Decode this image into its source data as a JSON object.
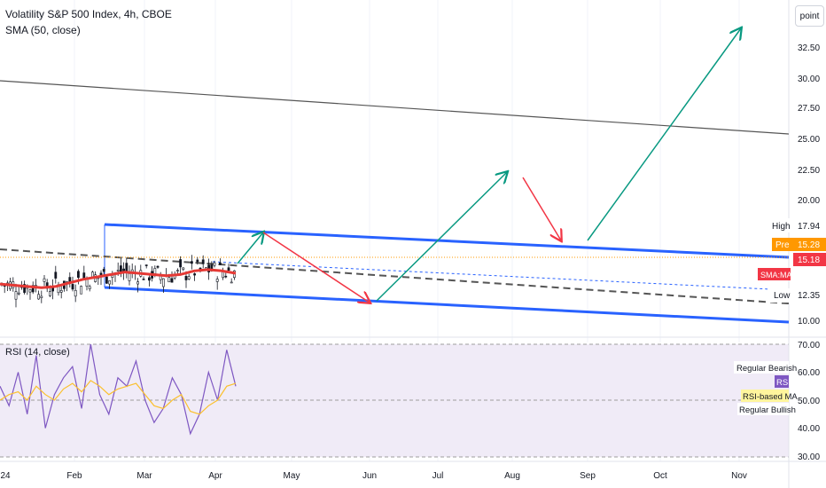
{
  "header": {
    "title": "Volatility S&P 500 Index, 4h, CBOE",
    "indicator": "SMA (50, close)",
    "scale_button": "point"
  },
  "price_axis": {
    "ticks": [
      "32.50",
      "30.00",
      "27.50",
      "25.00",
      "22.50",
      "20.00",
      "10.00"
    ],
    "labels": {
      "high": {
        "text": "High",
        "value": "17.94"
      },
      "pre": {
        "text": "Pre",
        "value": "15.28",
        "color": "#ff9800"
      },
      "last": {
        "value": "15.18",
        "color": "#f23645"
      },
      "sma": {
        "text": "SMA:MA",
        "color": "#f23645"
      },
      "low": {
        "text": "Low",
        "value": "12.35"
      }
    }
  },
  "rsi": {
    "label": "RSI (14, close)",
    "ticks": [
      "70.00",
      "60.00",
      "50.00",
      "40.00",
      "30.00"
    ],
    "labels": {
      "regular_bearish": "Regular Bearish",
      "rsi": "RSI",
      "rsi_ma": "RSI-based MA",
      "regular_bullish": "Regular Bullish"
    }
  },
  "time_axis": {
    "ticks": [
      "24",
      "Feb",
      "Mar",
      "Apr",
      "May",
      "Jun",
      "Jul",
      "Aug",
      "Sep",
      "Oct",
      "Nov"
    ]
  },
  "chart_data": {
    "type": "line",
    "title": "Volatility S&P 500 Index, 4h, CBOE",
    "price_range": [
      8.5,
      35
    ],
    "rsi_range": [
      28,
      72
    ],
    "series": [
      {
        "name": "SMA (50, close)",
        "color": "#e53935",
        "values": [
          13.1,
          13.0,
          12.9,
          12.8,
          12.9,
          13.2,
          13.5,
          13.7,
          13.9,
          14.1,
          14.0,
          13.9,
          13.8,
          13.9,
          14.2,
          14.3,
          14.2,
          14.0
        ]
      },
      {
        "name": "RSI (14, close)",
        "color": "#7e57c2",
        "values": [
          55,
          48,
          60,
          45,
          66,
          40,
          52,
          58,
          62,
          47,
          70,
          52,
          45,
          58,
          55,
          64,
          50,
          42,
          47,
          58,
          52,
          38,
          45,
          60,
          50,
          68,
          55
        ]
      },
      {
        "name": "RSI-based MA",
        "color": "#fbc02d",
        "values": [
          50,
          52,
          53,
          50,
          55,
          52,
          50,
          54,
          56,
          53,
          57,
          55,
          52,
          54,
          55,
          56,
          52,
          48,
          47,
          50,
          52,
          46,
          45,
          48,
          50,
          55,
          56
        ]
      }
    ],
    "last_price": 15.18,
    "pre_price": 15.28,
    "high": 17.94,
    "low": 12.35,
    "colors": {
      "channel": "#2962ff",
      "arrow_up": "#089981",
      "arrow_down": "#f23645",
      "trend": "#555555"
    }
  }
}
